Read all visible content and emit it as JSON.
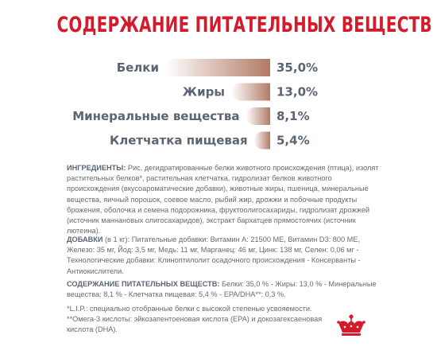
{
  "title": "СОДЕРЖАНИЕ ПИТАТЕЛЬНЫХ ВЕЩЕСТВ",
  "chart_data": {
    "type": "bar",
    "categories": [
      "Белки",
      "Жиры",
      "Минеральные вещества",
      "Клетчатка пищевая"
    ],
    "values": [
      35.0,
      13.0,
      8.1,
      5.4
    ],
    "value_labels": [
      "35,0%",
      "13,0%",
      "8,1%",
      "5,4%"
    ],
    "title": "",
    "xlabel": "",
    "ylabel": "",
    "orientation": "horizontal",
    "gradient_colors": [
      "#b17a66",
      "#ffffff"
    ]
  },
  "ingredients": {
    "heading": "ИНГРЕДИЕНТЫ:",
    "text": "Рис, дегидратированные белки животного происхождения (птица), изолят растительных белков*, растительная клетчатка, гидролизат белков животного происхождения (вкусоароматические добавки), животные жиры, пшеница, минеральные вещества, яичный порошок, соевое масло, рыбий жир, дрожжи и побочные продукты брожения, оболочка и семена подорожника, фруктоолигосахариды, гидролизат дрожжей (источник маннановых олигосахаридов), экстракт бархатцев прямостоячих (источник лютеина)."
  },
  "additives": {
    "heading": "ДОБАВКИ",
    "unit": "(в 1 кг):",
    "text": "Питательные добавки: Витамин A: 21500 МЕ, Витамин D3: 800 МЕ, Железо: 35 мг, Йод: 3,5 мг, Медь: 11 мг, Марганец: 46 мг, Цинк: 138 мг, Селен: 0,06 мг - Технологические добавки: Клиноптилолит осадочного происхождения - Консерванты - Антиокислители."
  },
  "nutrients": {
    "heading": "СОДЕРЖАНИЕ ПИТАТЕЛЬНЫХ ВЕЩЕСТВ:",
    "text": "Белки: 35,0 % - Жиры: 13,0 % - Минеральные вещества: 8,1 % - Клетчатка пищевая: 5,4 % - EPA/DHA**: 0,3 %."
  },
  "footnotes": {
    "line1": "*L.I.P.: специально отобранные белки с высокой степенью усвояемости.",
    "line2": "**Омега-3 кислоты: эйкозапентоеновая кислота (EPA) и докозагексаеновая кислота (DHA)."
  },
  "logo": {
    "icon": "royal-crown-icon",
    "color": "#d41b2c"
  }
}
